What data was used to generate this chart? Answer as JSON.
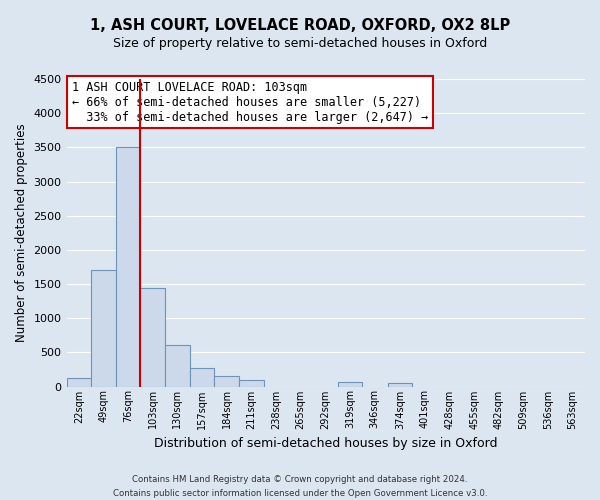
{
  "title": "1, ASH COURT, LOVELACE ROAD, OXFORD, OX2 8LP",
  "subtitle": "Size of property relative to semi-detached houses in Oxford",
  "xlabel": "Distribution of semi-detached houses by size in Oxford",
  "ylabel": "Number of semi-detached properties",
  "bin_labels": [
    "22sqm",
    "49sqm",
    "76sqm",
    "103sqm",
    "130sqm",
    "157sqm",
    "184sqm",
    "211sqm",
    "238sqm",
    "265sqm",
    "292sqm",
    "319sqm",
    "346sqm",
    "374sqm",
    "401sqm",
    "428sqm",
    "455sqm",
    "482sqm",
    "509sqm",
    "536sqm",
    "563sqm"
  ],
  "bin_edges": [
    22,
    49,
    76,
    103,
    130,
    157,
    184,
    211,
    238,
    265,
    292,
    319,
    346,
    374,
    401,
    428,
    455,
    482,
    509,
    536,
    563
  ],
  "bin_width": 27,
  "bar_heights": [
    130,
    1700,
    3500,
    1440,
    610,
    275,
    160,
    95,
    0,
    0,
    0,
    60,
    0,
    50,
    0,
    0,
    0,
    0,
    0,
    0
  ],
  "bar_color": "#ccd9ea",
  "bar_edge_color": "#6f93b8",
  "property_line_x": 103,
  "property_line_color": "#cc0000",
  "annotation_title": "1 ASH COURT LOVELACE ROAD: 103sqm",
  "annotation_line1": "← 66% of semi-detached houses are smaller (5,227)",
  "annotation_line2": "  33% of semi-detached houses are larger (2,647) →",
  "annotation_box_color": "#ffffff",
  "annotation_box_edge_color": "#cc0000",
  "ylim": [
    0,
    4500
  ],
  "yticks": [
    0,
    500,
    1000,
    1500,
    2000,
    2500,
    3000,
    3500,
    4000,
    4500
  ],
  "background_color": "#dce6f0",
  "grid_color": "#ffffff",
  "footer_line1": "Contains HM Land Registry data © Crown copyright and database right 2024.",
  "footer_line2": "Contains public sector information licensed under the Open Government Licence v3.0."
}
